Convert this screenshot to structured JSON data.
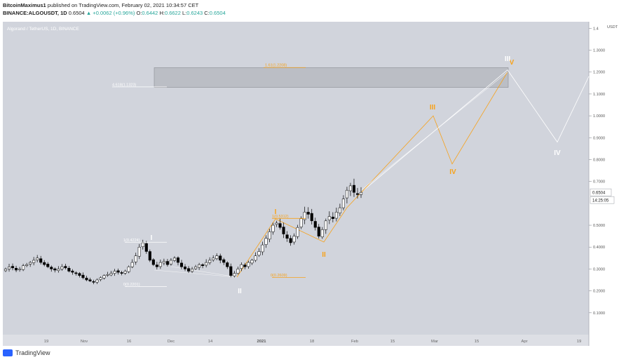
{
  "header": {
    "author": "BitcoinMaximus1",
    "published": "published on TradingView.com, February 02, 2021 10:34:57 CET",
    "symbol_line_prefix": "BINANCE:ALGOUSDT, 1D",
    "last": "0.6504",
    "change": "▲ +0.0062 (+0.96%)",
    "o_label": "O:",
    "o_val": "0.6442",
    "h_label": "H:",
    "h_val": "0.6622",
    "l_label": "L:",
    "l_val": "0.6243",
    "c_label": "C:",
    "c_val": "0.6504"
  },
  "chart_title": "Algorand / TetherUS, 1D, BINANCE",
  "footer_brand": "TradingView",
  "price_tag": "0.6504",
  "countdown_tag": "14:25:05",
  "colors": {
    "plot_bg": "#d1d4dc",
    "orange": "#f7a21b",
    "white_wave": "#ffffff",
    "zone": "#a9abb2",
    "up_candle": "#ffffff",
    "down_candle": "#000000"
  },
  "chart_data": {
    "type": "candlestick",
    "currency_label": "USDT",
    "y_ticks": [
      1.4,
      1.3,
      1.2,
      1.1,
      1.0,
      0.9,
      0.8,
      0.7,
      0.5,
      0.4,
      0.3,
      0.2,
      0.1
    ],
    "y_tick_labels": [
      "1.4",
      "1.3000",
      "1.2000",
      "1.1000",
      "1.0000",
      "0.9000",
      "0.8000",
      "0.7000",
      "0.5000",
      "0.4000",
      "0.3000",
      "0.2000",
      "0.1000"
    ],
    "x_tick_labels": [
      "19",
      "Nov",
      "16",
      "Dec",
      "14",
      "2021",
      "18",
      "Feb",
      "15",
      "Mar",
      "15",
      "Apr",
      "19"
    ],
    "ylim": [
      0.0,
      1.43
    ],
    "closes": [
      0.3,
      0.31,
      0.305,
      0.295,
      0.3,
      0.315,
      0.32,
      0.33,
      0.34,
      0.35,
      0.33,
      0.32,
      0.31,
      0.3,
      0.295,
      0.3,
      0.31,
      0.305,
      0.29,
      0.285,
      0.28,
      0.27,
      0.26,
      0.25,
      0.245,
      0.24,
      0.25,
      0.26,
      0.27,
      0.275,
      0.28,
      0.29,
      0.285,
      0.28,
      0.29,
      0.31,
      0.33,
      0.36,
      0.4,
      0.42,
      0.38,
      0.34,
      0.32,
      0.31,
      0.33,
      0.335,
      0.32,
      0.34,
      0.35,
      0.33,
      0.31,
      0.3,
      0.29,
      0.3,
      0.31,
      0.32,
      0.315,
      0.33,
      0.34,
      0.35,
      0.36,
      0.34,
      0.33,
      0.31,
      0.27,
      0.28,
      0.3,
      0.32,
      0.31,
      0.33,
      0.34,
      0.36,
      0.38,
      0.41,
      0.44,
      0.47,
      0.5,
      0.51,
      0.49,
      0.46,
      0.44,
      0.42,
      0.45,
      0.49,
      0.53,
      0.56,
      0.55,
      0.52,
      0.49,
      0.45,
      0.48,
      0.52,
      0.54,
      0.53,
      0.56,
      0.58,
      0.62,
      0.66,
      0.68,
      0.65,
      0.64,
      0.6504
    ],
    "levels": [
      {
        "label": "1(0.4224)",
        "value": 0.4224
      },
      {
        "label": "0(0.2201)",
        "value": 0.2201
      },
      {
        "label": "1(0.5312)",
        "value": 0.5312
      },
      {
        "label": "0(0.2609)",
        "value": 0.2609
      },
      {
        "label": "1.61(1.2208)",
        "value": 1.2208
      },
      {
        "label": "4.618(1.1323)",
        "value": 1.1323
      }
    ],
    "target_zone": [
      1.13,
      1.22
    ],
    "wave_labels": [
      {
        "text": "I",
        "color": "white"
      },
      {
        "text": "II",
        "color": "white"
      },
      {
        "text": "I",
        "color": "orange"
      },
      {
        "text": "II",
        "color": "orange"
      },
      {
        "text": "III",
        "color": "orange"
      },
      {
        "text": "IV",
        "color": "orange"
      },
      {
        "text": "V",
        "color": "orange"
      },
      {
        "text": "III",
        "color": "white"
      },
      {
        "text": "IV",
        "color": "white"
      }
    ],
    "white_projection": [
      0.6504,
      1.21,
      0.88,
      1.18
    ],
    "orange_projection": [
      0.48,
      1.0,
      0.78,
      1.2
    ]
  }
}
